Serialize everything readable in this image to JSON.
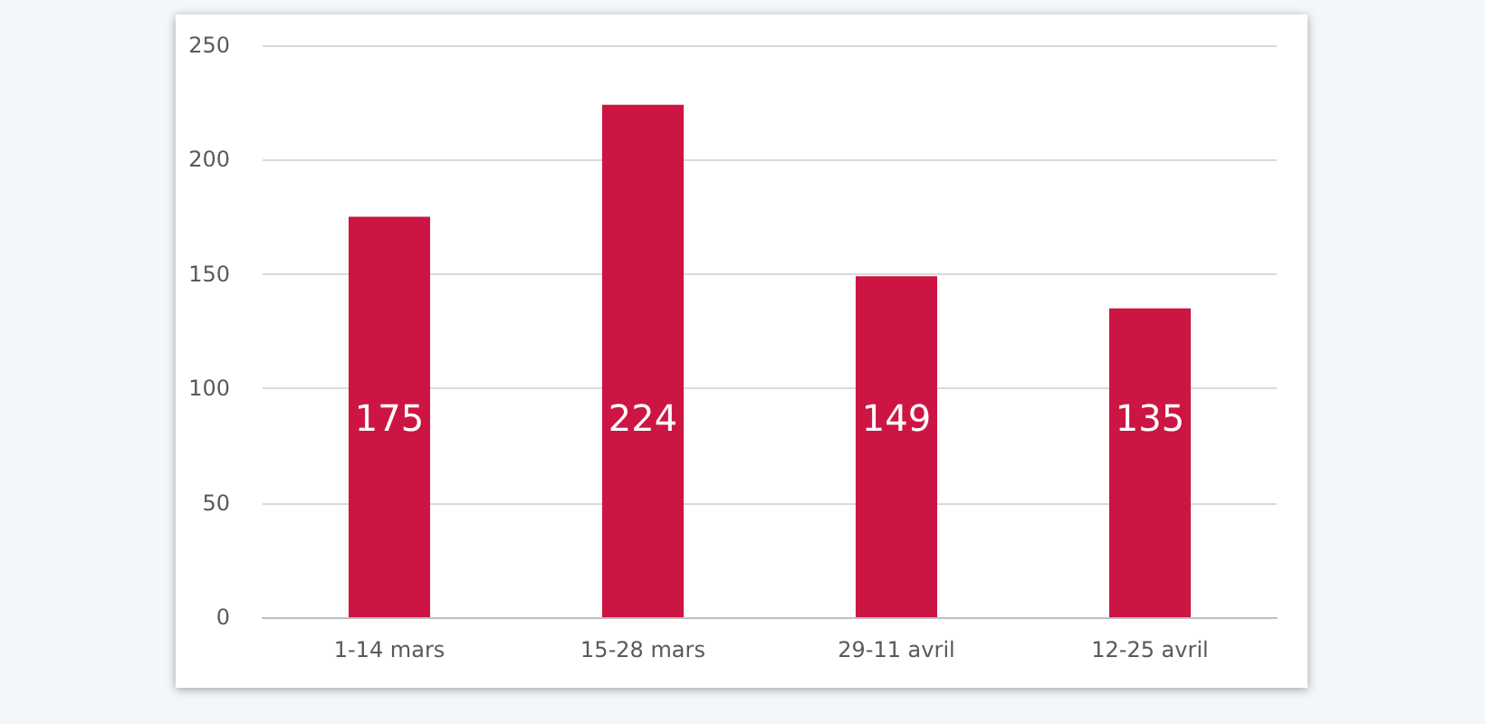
{
  "chart_data": {
    "type": "bar",
    "categories": [
      "1-14 mars",
      "15-28 mars",
      "29-11 avril",
      "12-25 avril"
    ],
    "values": [
      175,
      224,
      149,
      135
    ],
    "color": "#cc1543",
    "ylim": [
      0,
      250
    ],
    "yticks": [
      0,
      50,
      100,
      150,
      200,
      250
    ],
    "grid": "y",
    "data_labels": true
  }
}
